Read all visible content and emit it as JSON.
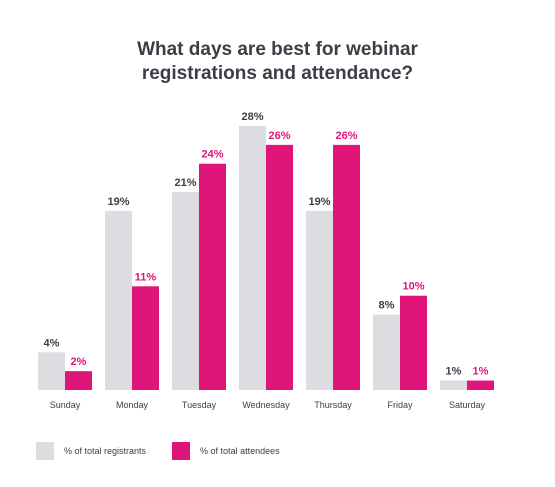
{
  "chart_data": {
    "type": "bar",
    "title_lines": [
      "What days are best for webinar",
      "registrations and attendance?"
    ],
    "categories": [
      "Sunday",
      "Monday",
      "Tuesday",
      "Wednesday",
      "Thursday",
      "Friday",
      "Saturday"
    ],
    "series": [
      {
        "name": "% of total registrants",
        "values": [
          4,
          19,
          21,
          28,
          19,
          8,
          1
        ],
        "labels": [
          "4%",
          "19%",
          "21%",
          "28%",
          "19%",
          "8%",
          "1%"
        ],
        "color": "#dcdde1",
        "label_color": "#3a3f47"
      },
      {
        "name": "% of total attendees",
        "values": [
          2,
          11,
          24,
          26,
          26,
          10,
          1
        ],
        "labels": [
          "2%",
          "11%",
          "24%",
          "26%",
          "26%",
          "10%",
          "1%"
        ],
        "color": "#e0157a",
        "label_color": "#e0157a"
      }
    ],
    "ylim": [
      0,
      28
    ],
    "grid": false,
    "legend_position": "bottom-left"
  }
}
